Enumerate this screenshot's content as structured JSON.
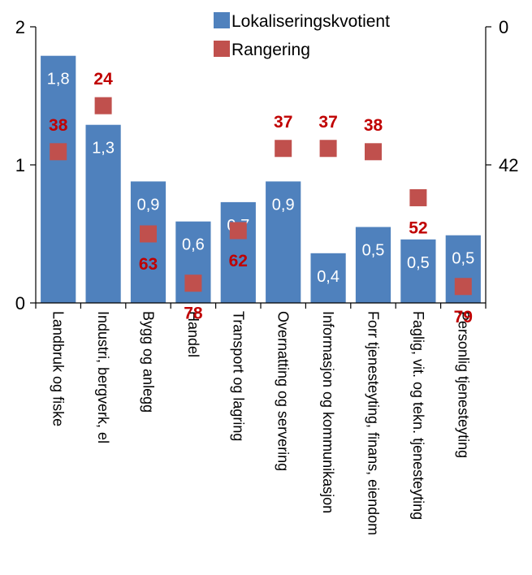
{
  "chart_data": {
    "type": "bar",
    "categories": [
      "Landbruk og fiske",
      "Industri, bergverk, el",
      "Bygg og anlegg",
      "Handel",
      "Transport og lagring",
      "Overnatting og servering",
      "Informasjon og kommunikasjon",
      "Forr tjenesteyting, finans, eiendom",
      "Faglig, vit. og tekn. tjenesteyting",
      "Personlig tjenesteyting"
    ],
    "series": [
      {
        "name": "Lokaliseringskvotient",
        "type": "bar",
        "axis": "left",
        "color": "#4f81bd",
        "values": [
          1.8,
          1.3,
          0.9,
          0.6,
          0.7,
          0.9,
          0.4,
          0.5,
          0.5,
          0.5
        ],
        "plot_values": [
          1.79,
          1.29,
          0.88,
          0.59,
          0.73,
          0.88,
          0.36,
          0.55,
          0.46,
          0.49
        ],
        "labels": [
          "1,8",
          "1,3",
          "0,9",
          "0,6",
          "0,7",
          "0,9",
          "0,4",
          "0,5",
          "0,5",
          "0,5"
        ]
      },
      {
        "name": "Rangering",
        "type": "scatter",
        "axis": "right",
        "reversed": true,
        "color": "#c0504d",
        "values": [
          38,
          24,
          63,
          78,
          62,
          37,
          37,
          38,
          52,
          79
        ],
        "labels": [
          "38",
          "24",
          "63",
          "78",
          "62",
          "37",
          "37",
          "38",
          "52",
          "79"
        ]
      }
    ],
    "yaxis_left": {
      "ylim": [
        0,
        2
      ],
      "ticks": [
        "0",
        "1",
        "2"
      ]
    },
    "yaxis_right": {
      "ylim": [
        0,
        84
      ],
      "reversed": true,
      "ticks": [
        "0",
        "42"
      ]
    },
    "legend": {
      "position": "top-right"
    },
    "grid": false
  }
}
